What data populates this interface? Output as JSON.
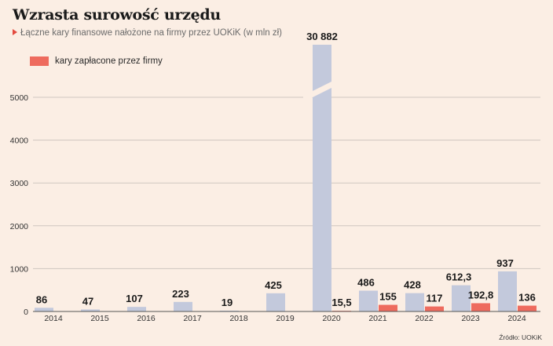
{
  "header": {
    "title": "Wzrasta surowość urzędu",
    "subtitle": "Łączne kary finansowe nałożone na firmy przez UOKiK (w mln zł)"
  },
  "legend": {
    "label": "kary zapłacone przez firmy"
  },
  "source": "Źródło: UOKiK",
  "colors": {
    "background": "#fbeee4",
    "total": "#c3c9dc",
    "paid": "#ee6b5e",
    "text": "#1a1a1a"
  },
  "chart_data": {
    "type": "bar",
    "title": "Wzrasta surowość urzędu",
    "subtitle": "Łączne kary finansowe nałożone na firmy przez UOKiK (w mln zł)",
    "categories": [
      "2014",
      "2015",
      "2016",
      "2017",
      "2018",
      "2019",
      "2020",
      "2021",
      "2022",
      "2023",
      "2024"
    ],
    "series": [
      {
        "key": "total",
        "values": [
          86,
          47,
          107,
          223,
          19,
          425,
          30882,
          486,
          428,
          612.3,
          937
        ],
        "labels": [
          "86",
          "47",
          "107",
          "223",
          "19",
          "425",
          "30 882",
          "486",
          "428",
          "612,3",
          "937"
        ]
      },
      {
        "name": "kary zapłacone przez firmy",
        "key": "paid",
        "values": [
          null,
          null,
          null,
          null,
          null,
          null,
          15.5,
          155,
          117,
          192.8,
          136
        ],
        "labels": [
          null,
          null,
          null,
          null,
          null,
          null,
          "15,5",
          "155",
          "117",
          "192,8",
          "136"
        ]
      }
    ],
    "ylim": [
      0,
      5000
    ],
    "yticks": [
      0,
      1000,
      2000,
      3000,
      4000,
      5000
    ],
    "axis_break": true,
    "grid": true,
    "legend_position": "top-left"
  }
}
